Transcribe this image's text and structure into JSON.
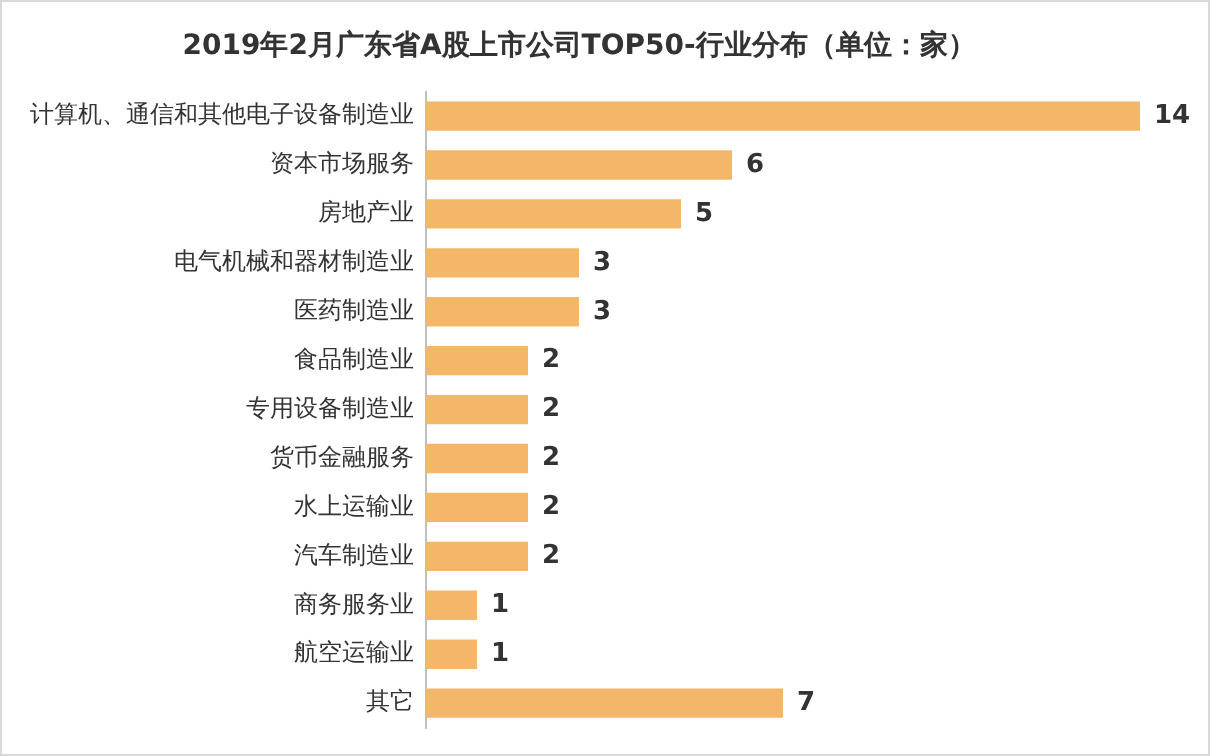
{
  "chart_data": {
    "type": "bar",
    "orientation": "horizontal",
    "title": "2019年2月广东省A股上市公司TOP50-行业分布（单位：家）",
    "categories": [
      "计算机、通信和其他电子设备制造业",
      "资本市场服务",
      "房地产业",
      "电气机械和器材制造业",
      "医药制造业",
      "食品制造业",
      "专用设备制造业",
      "货币金融服务",
      "水上运输业",
      "汽车制造业",
      "商务服务业",
      "航空运输业",
      "其它"
    ],
    "values": [
      14,
      6,
      5,
      3,
      3,
      2,
      2,
      2,
      2,
      2,
      1,
      1,
      7
    ],
    "color": "#f4b76a",
    "data_labels": true
  }
}
